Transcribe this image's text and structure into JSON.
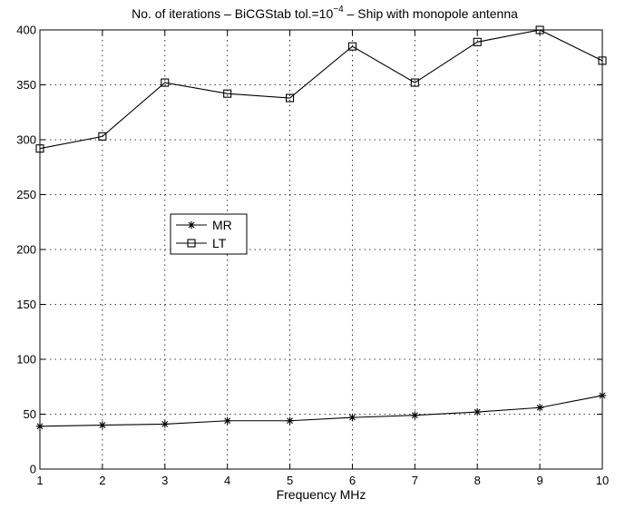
{
  "chart_data": {
    "type": "line",
    "title": {
      "prefix": "No. of iterations – BiCGStab tol.=10",
      "exponent": "−4",
      "suffix": " – Ship with monopole antenna"
    },
    "xlabel": "Frequency MHz",
    "ylabel": "",
    "x": [
      1,
      2,
      3,
      4,
      5,
      6,
      7,
      8,
      9,
      10
    ],
    "xlim": [
      1,
      10
    ],
    "ylim": [
      0,
      400
    ],
    "xticks": [
      "1",
      "2",
      "3",
      "4",
      "5",
      "6",
      "7",
      "8",
      "9",
      "10"
    ],
    "yticks": [
      "0",
      "50",
      "100",
      "150",
      "200",
      "250",
      "300",
      "350",
      "400"
    ],
    "grid": true,
    "legend_position": "center-left",
    "series": [
      {
        "name": "MR",
        "marker": "star",
        "color": "#000000",
        "values": [
          39,
          40,
          41,
          44,
          44,
          47,
          49,
          52,
          56,
          67
        ]
      },
      {
        "name": "LT",
        "marker": "square",
        "color": "#000000",
        "values": [
          292,
          303,
          352,
          342,
          338,
          385,
          352,
          389,
          400,
          372
        ]
      }
    ]
  }
}
